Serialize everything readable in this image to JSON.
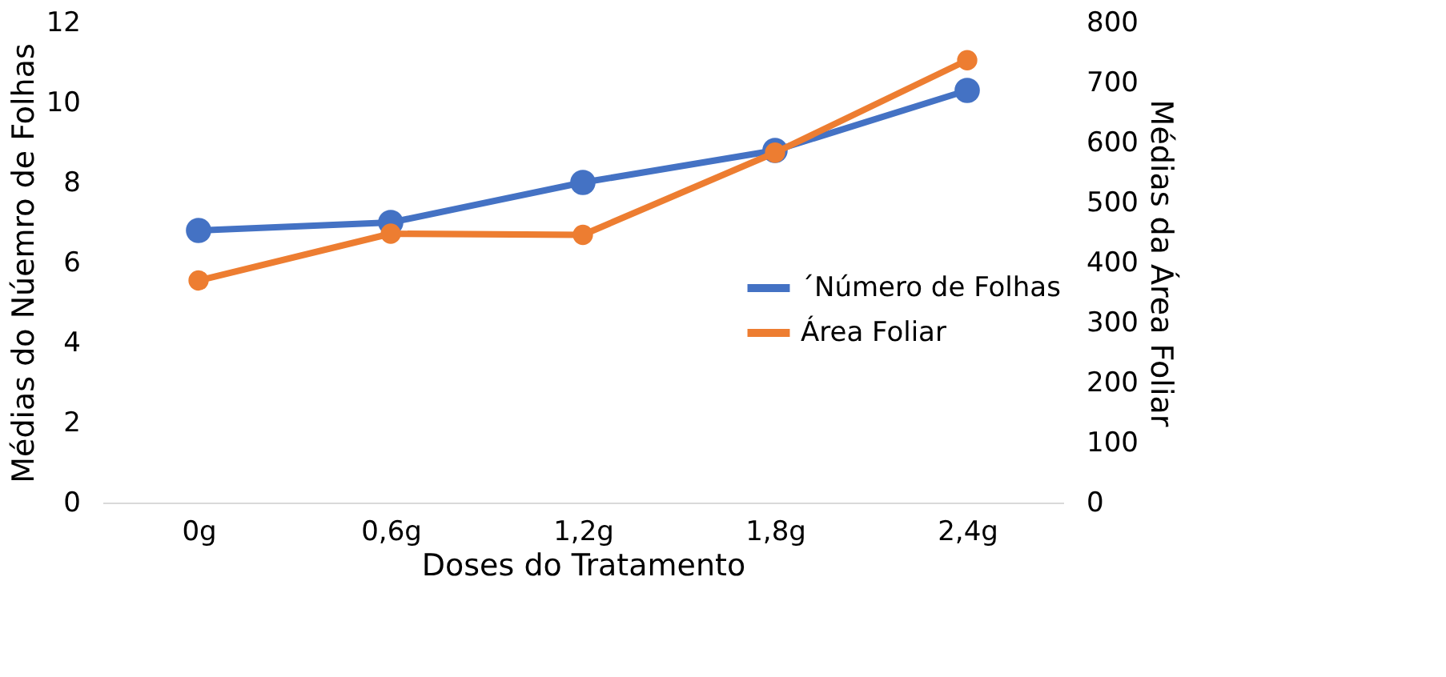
{
  "chart_data": {
    "type": "line",
    "categories": [
      "0g",
      "0,6g",
      "1,2g",
      "1,8g",
      "2,4g"
    ],
    "xlabel": "Doses do Tratamento",
    "ylabel": "Médias  do Núemro de Folhas",
    "y2label": "Médias  da Área Foliar",
    "series": [
      {
        "name": "´Número de Folhas",
        "color": "#4472c4",
        "values": [
          6.8,
          7.0,
          8.0,
          8.8,
          10.3
        ]
      },
      {
        "name": "Área Foliar",
        "color": "#ed7d31",
        "axis": "y2",
        "values": [
          370,
          448,
          446,
          583,
          737
        ]
      }
    ],
    "ylim": [
      0,
      12
    ],
    "yticks": [
      0,
      2,
      4,
      6,
      8,
      10,
      12
    ],
    "y2lim": [
      0,
      800
    ],
    "y2ticks": [
      0,
      100,
      200,
      300,
      400,
      500,
      600,
      700,
      800
    ],
    "marker": "circle",
    "line_style": "solid",
    "grid": false,
    "legend": "right"
  }
}
